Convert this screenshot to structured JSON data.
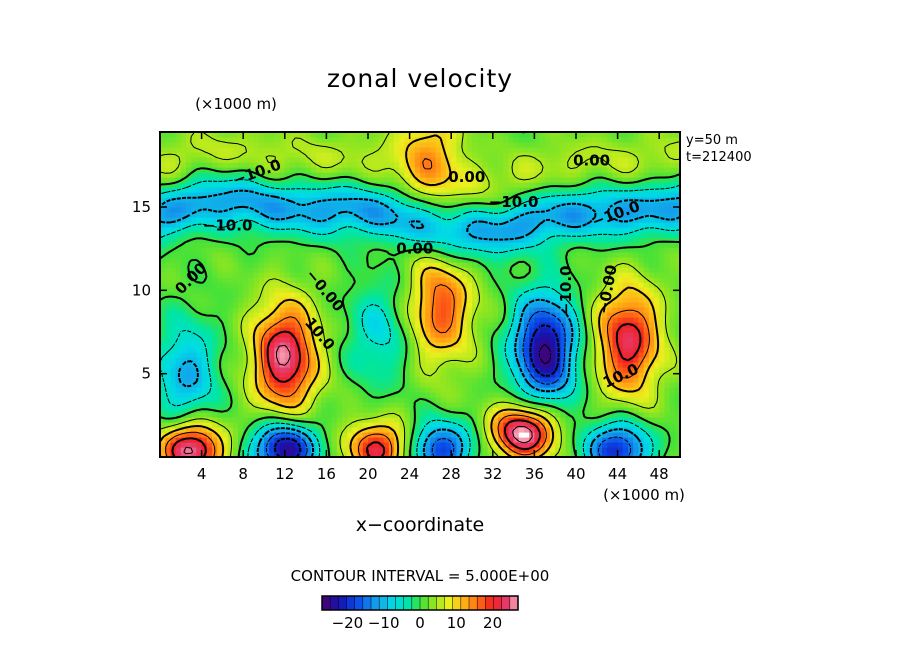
{
  "chart_data": {
    "type": "heatmap",
    "title": "zonal velocity",
    "xlabel": "x−coordinate",
    "x_unit": "(×1000 m)",
    "y_unit": "(×1000 m)",
    "xlim": [
      0,
      50
    ],
    "ylim": [
      0,
      19.5
    ],
    "x_ticks": [
      4,
      8,
      12,
      16,
      20,
      24,
      28,
      32,
      36,
      40,
      44,
      48
    ],
    "y_ticks": [
      5,
      10,
      15
    ],
    "info_lines": [
      "y=50 m",
      "t=212400"
    ],
    "contour_interval_label": "CONTOUR INTERVAL = 5.000E+00",
    "contour_labels": [
      "−10.0",
      "−10.0",
      "0.00",
      "0.00",
      "0.00",
      "−0.00",
      "10.0",
      "−10.0",
      "−10.0",
      "−0.00",
      "10.0",
      "−10.0",
      "0.00"
    ],
    "colorbar": {
      "ticks": [
        -20,
        -10,
        0,
        10,
        20
      ],
      "tick_labels": [
        "−20",
        "−10",
        "0",
        "10",
        "20"
      ],
      "range": [
        -27,
        27
      ]
    },
    "features": [
      {
        "kind": "jet",
        "sign": "negative",
        "x": [
          0,
          50
        ],
        "y": 14.5,
        "peak": -13
      },
      {
        "kind": "band",
        "sign": "positive",
        "x": [
          0,
          50
        ],
        "y": 17.5,
        "peak": 4
      },
      {
        "kind": "blob",
        "sign": "positive",
        "x": 12,
        "y": 6,
        "peak": 24
      },
      {
        "kind": "blob",
        "sign": "positive",
        "x": 27,
        "y": 9,
        "peak": 16
      },
      {
        "kind": "blob",
        "sign": "positive",
        "x": 45,
        "y": 7,
        "peak": 21
      },
      {
        "kind": "blob",
        "sign": "positive",
        "x": 26,
        "y": 18.5,
        "peak": 10
      },
      {
        "kind": "blob",
        "sign": "negative",
        "x": 37,
        "y": 6.5,
        "peak": -27
      },
      {
        "kind": "blob",
        "sign": "negative",
        "x": 2.5,
        "y": 5,
        "peak": -12
      },
      {
        "kind": "blob",
        "sign": "negative",
        "x": 21,
        "y": 7.5,
        "peak": -8
      },
      {
        "kind": "blob",
        "sign": "negative",
        "x": 12,
        "y": 0.5,
        "peak": -27
      },
      {
        "kind": "blob",
        "sign": "negative",
        "x": 27,
        "y": 0.5,
        "peak": -20
      },
      {
        "kind": "blob",
        "sign": "negative",
        "x": 44,
        "y": 0.5,
        "peak": -22
      },
      {
        "kind": "blob",
        "sign": "positive",
        "x": 3,
        "y": 0.5,
        "peak": 26
      },
      {
        "kind": "blob",
        "sign": "positive",
        "x": 21,
        "y": 0.5,
        "peak": 20
      },
      {
        "kind": "blob",
        "sign": "positive",
        "x": 35,
        "y": 1.5,
        "peak": 27
      }
    ]
  }
}
